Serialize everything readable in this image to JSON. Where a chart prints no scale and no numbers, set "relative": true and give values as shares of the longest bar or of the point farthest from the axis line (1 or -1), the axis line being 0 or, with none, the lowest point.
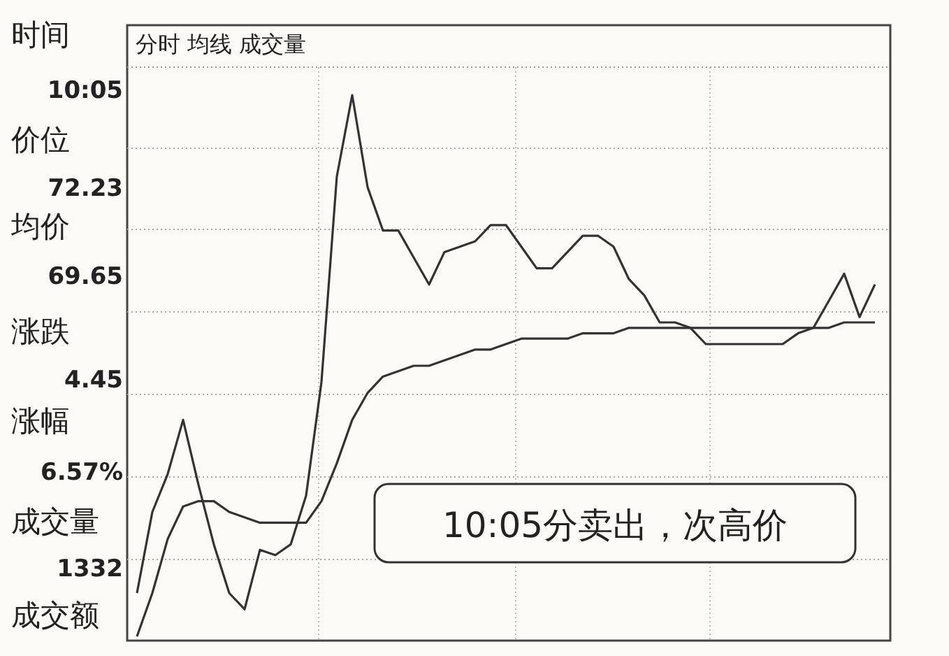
{
  "chart_data": {
    "type": "line",
    "relative": true,
    "grid": true,
    "title": "分时 均线 成交量",
    "categories": [
      null,
      null,
      null,
      null,
      null,
      null,
      null,
      null,
      null,
      null,
      null,
      null,
      null,
      null,
      null,
      null,
      null,
      null,
      null,
      null,
      null,
      null,
      null,
      null,
      null,
      null,
      null,
      null,
      null,
      null,
      null,
      null,
      null,
      null,
      null,
      null,
      null,
      null,
      null,
      null,
      null,
      null,
      null,
      null,
      null,
      null,
      null,
      null,
      null
    ],
    "series": [
      {
        "color": "#333333",
        "values": [
          0.08,
          0.23,
          0.3,
          0.4,
          0.28,
          0.17,
          0.08,
          0.05,
          0.16,
          0.15,
          0.17,
          0.26,
          0.47,
          0.85,
          1,
          0.83,
          0.75,
          0.75,
          0.7,
          0.65,
          0.71,
          0.72,
          0.73,
          0.76,
          0.76,
          0.72,
          0.68,
          0.68,
          0.71,
          0.74,
          0.74,
          0.72,
          0.66,
          0.63,
          0.58,
          0.58,
          0.57,
          0.54,
          0.54,
          0.54,
          0.54,
          0.54,
          0.54,
          0.56,
          0.57,
          0.62,
          0.67,
          0.59,
          0.65
        ]
      },
      {
        "color": "#333333",
        "values": [
          0,
          0.08,
          0.18,
          0.24,
          0.25,
          0.25,
          0.23,
          0.22,
          0.21,
          0.21,
          0.21,
          0.21,
          0.25,
          0.32,
          0.4,
          0.45,
          0.48,
          0.49,
          0.5,
          0.5,
          0.51,
          0.52,
          0.53,
          0.53,
          0.54,
          0.55,
          0.55,
          0.55,
          0.55,
          0.56,
          0.56,
          0.56,
          0.57,
          0.57,
          0.57,
          0.57,
          0.57,
          0.57,
          0.57,
          0.57,
          0.57,
          0.57,
          0.57,
          0.57,
          0.57,
          0.57,
          0.58,
          0.58,
          0.58
        ]
      }
    ],
    "annotations": [
      "时间",
      "10:05",
      "价位",
      "72.23",
      "均价",
      "69.65",
      "涨跌",
      "4.45",
      "涨幅",
      "6.57%",
      "成交量",
      "1332",
      "成交额",
      "10:05分卖出，次高价"
    ]
  }
}
